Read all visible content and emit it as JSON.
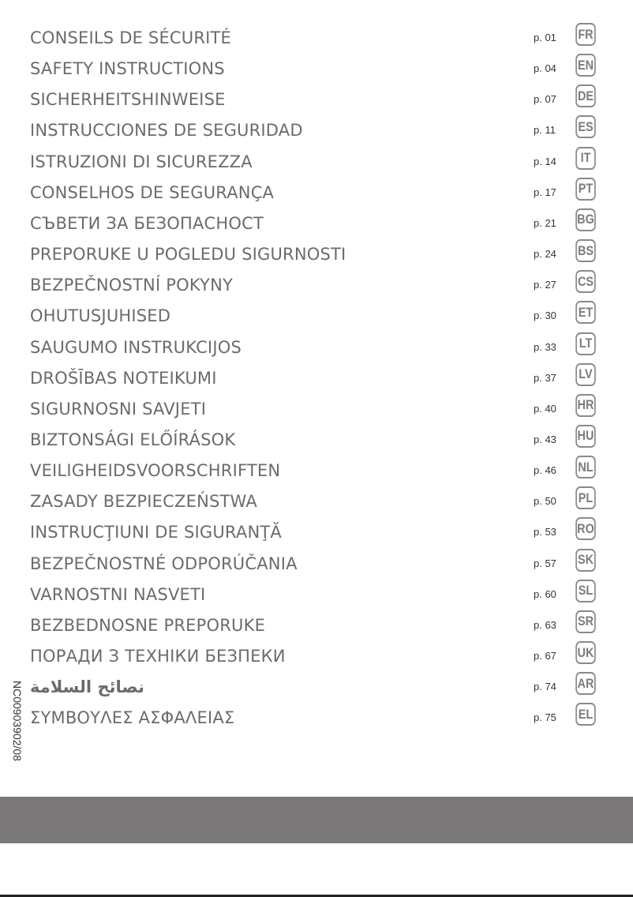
{
  "toc": [
    {
      "title": "CONSEILS DE SÉCURITÉ",
      "page": "p. 01",
      "lang": "FR"
    },
    {
      "title": "SAFETY INSTRUCTIONS",
      "page": "p. 04",
      "lang": "EN"
    },
    {
      "title": "SICHERHEITSHINWEISE",
      "page": "p. 07",
      "lang": "DE"
    },
    {
      "title": "INSTRUCCIONES DE SEGURIDAD",
      "page": "p. 11",
      "lang": "ES"
    },
    {
      "title": "ISTRUZIONI DI SICUREZZA",
      "page": "p. 14",
      "lang": "IT"
    },
    {
      "title": "CONSELHOS DE SEGURANÇA",
      "page": "p. 17",
      "lang": "PT"
    },
    {
      "title": "СЪВЕТИ ЗА БЕЗОПАСНОСТ",
      "page": "p. 21",
      "lang": "BG"
    },
    {
      "title": "PREPORUKE U POGLEDU SIGURNOSTI",
      "page": "p. 24",
      "lang": "BS"
    },
    {
      "title": "BEZPEČNOSTNÍ POKYNY",
      "page": "p. 27",
      "lang": "CS"
    },
    {
      "title": "OHUTUSJUHISED",
      "page": "p. 30",
      "lang": "ET"
    },
    {
      "title": "SAUGUMO INSTRUKCIJOS",
      "page": "p. 33",
      "lang": "LT"
    },
    {
      "title": "DROŠĪBAS NOTEIKUMI",
      "page": "p. 37",
      "lang": "LV"
    },
    {
      "title": "SIGURNOSNI SAVJETI",
      "page": "p. 40",
      "lang": "HR"
    },
    {
      "title": "BIZTONSÁGI ELŐÍRÁSOK",
      "page": "p. 43",
      "lang": "HU"
    },
    {
      "title": "VEILIGHEIDSVOORSCHRIFTEN",
      "page": "p. 46",
      "lang": "NL"
    },
    {
      "title": "ZASADY BEZPIECZEŃSTWA",
      "page": "p. 50",
      "lang": "PL"
    },
    {
      "title": "INSTRUCŢIUNI DE SIGURANŢĂ",
      "page": "p. 53",
      "lang": "RO"
    },
    {
      "title": "BEZPEČNOSTNÉ ODPORÚČANIA",
      "page": "p. 57",
      "lang": "SK"
    },
    {
      "title": "VARNOSTNI NASVETI",
      "page": "p. 60",
      "lang": "SL"
    },
    {
      "title": "BEZBEDNOSNE PREPORUKE",
      "page": "p. 63",
      "lang": "SR"
    },
    {
      "title": "ПОРАДИ З ТЕХНІКИ БЕЗПЕКИ",
      "page": "p. 67",
      "lang": "UK"
    },
    {
      "title": "نصائح السلامة",
      "page": "p. 74",
      "lang": "AR"
    },
    {
      "title": "ΣΥΜΒΟΥΛΕΣ ΑΣΦΑΛΕΙΑΣ",
      "page": "p. 75",
      "lang": "EL"
    }
  ],
  "document_code": "NC00903902/08",
  "colors": {
    "title": "#6b6b6d",
    "badge": "#7c7c7c",
    "band": "#7a7879"
  }
}
